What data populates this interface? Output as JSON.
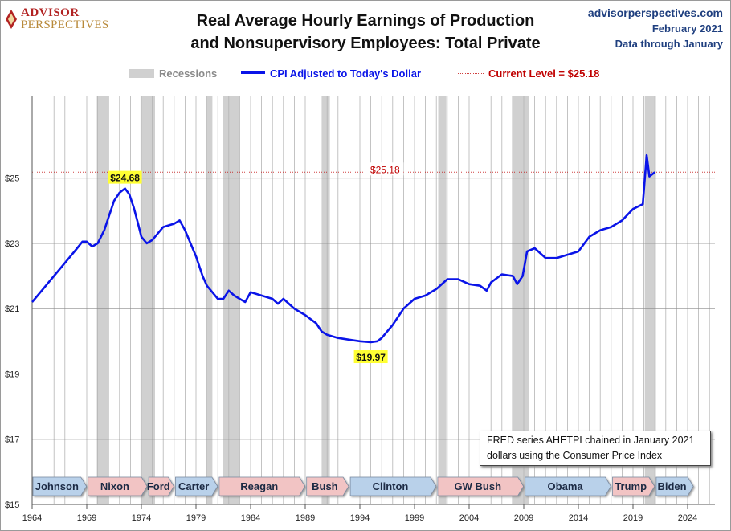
{
  "brand": {
    "line1": "ADVISOR",
    "line2": "PERSPECTIVES"
  },
  "title": "Real Average Hourly Earnings of Production\nand Nonsupervisory Employees: Total Private",
  "title_line1": "Real Average Hourly Earnings of Production",
  "title_line2": "and Nonsupervisory Employees: Total Private",
  "source": {
    "site": "advisorperspectives.com",
    "date": "February 2021",
    "through": "Data through January"
  },
  "legend": {
    "recessions": "Recessions",
    "series": "CPI Adjusted to Today's Dollar",
    "current": "Current Level = $25.18"
  },
  "note": {
    "line1": "FRED series AHETPI chained in January 2021",
    "line2": "dollars using the Consumer Price Index"
  },
  "colors": {
    "series": "#0a14e8",
    "recession": "#d0d0d0",
    "current": "#c00000",
    "highlight": "#ffff33",
    "dem": "#b9d1ea",
    "rep": "#f2c4c4",
    "grid": "#a0a0a0"
  },
  "chart_data": {
    "type": "line",
    "title": "Real Average Hourly Earnings of Production and Nonsupervisory Employees: Total Private",
    "xlim": [
      1964,
      2026.5
    ],
    "ylim": [
      15,
      27.5
    ],
    "x_ticks": [
      "1964",
      "1969",
      "1974",
      "1979",
      "1984",
      "1989",
      "1994",
      "1999",
      "2004",
      "2009",
      "2014",
      "2019",
      "2024"
    ],
    "y_ticks": [
      "$15",
      "$17",
      "$19",
      "$21",
      "$23",
      "$25"
    ],
    "y_tick_values": [
      15,
      17,
      19,
      21,
      23,
      25
    ],
    "grid": true,
    "legend_position": "top",
    "series": [
      {
        "name": "CPI Adjusted to Today's Dollar",
        "x": [
          1964.0,
          1965.0,
          1966.0,
          1967.0,
          1968.0,
          1968.6,
          1969.0,
          1969.5,
          1970.0,
          1970.6,
          1971.0,
          1971.5,
          1972.0,
          1972.5,
          1972.9,
          1973.3,
          1973.7,
          1974.0,
          1974.5,
          1975.0,
          1975.5,
          1976.0,
          1976.5,
          1977.0,
          1977.5,
          1978.0,
          1978.5,
          1979.0,
          1979.6,
          1980.0,
          1980.5,
          1981.0,
          1981.5,
          1982.0,
          1982.5,
          1983.0,
          1983.5,
          1984.0,
          1985.0,
          1986.0,
          1986.5,
          1987.0,
          1988.0,
          1989.0,
          1990.0,
          1990.5,
          1991.0,
          1992.0,
          1993.0,
          1994.0,
          1995.0,
          1995.6,
          1996.0,
          1997.0,
          1998.0,
          1999.0,
          2000.0,
          2001.0,
          2002.0,
          2003.0,
          2004.0,
          2005.0,
          2005.6,
          2006.0,
          2007.0,
          2008.0,
          2008.4,
          2008.9,
          2009.3,
          2010.0,
          2011.0,
          2012.0,
          2013.0,
          2014.0,
          2015.0,
          2016.0,
          2017.0,
          2018.0,
          2019.0,
          2019.9,
          2020.25,
          2020.5,
          2021.0
        ],
        "values": [
          21.2,
          21.6,
          22.0,
          22.4,
          22.8,
          23.05,
          23.05,
          22.9,
          23.0,
          23.4,
          23.8,
          24.3,
          24.55,
          24.68,
          24.5,
          24.1,
          23.6,
          23.2,
          23.0,
          23.1,
          23.3,
          23.5,
          23.55,
          23.6,
          23.7,
          23.4,
          23.0,
          22.6,
          22.0,
          21.7,
          21.5,
          21.3,
          21.3,
          21.55,
          21.4,
          21.3,
          21.2,
          21.5,
          21.4,
          21.3,
          21.15,
          21.3,
          21.0,
          20.8,
          20.55,
          20.3,
          20.2,
          20.1,
          20.05,
          20.0,
          19.97,
          20.0,
          20.1,
          20.5,
          21.0,
          21.3,
          21.4,
          21.6,
          21.9,
          21.9,
          21.75,
          21.7,
          21.55,
          21.8,
          22.05,
          22.0,
          21.75,
          22.0,
          22.75,
          22.85,
          22.55,
          22.55,
          22.65,
          22.75,
          23.2,
          23.4,
          23.5,
          23.7,
          24.05,
          24.2,
          25.7,
          25.05,
          25.18
        ]
      }
    ],
    "annotations": [
      {
        "label": "$24.68",
        "x": 1972.5,
        "y": 24.68,
        "kind": "peak"
      },
      {
        "label": "$19.97",
        "x": 1995.0,
        "y": 19.97,
        "kind": "trough"
      },
      {
        "label": "$25.18",
        "x": 2020.2,
        "y": 25.18,
        "kind": "current"
      }
    ],
    "current_level": 25.18,
    "recessions": [
      [
        1969.92,
        1970.92
      ],
      [
        1973.92,
        1975.25
      ],
      [
        1980.0,
        1980.5
      ],
      [
        1981.5,
        1982.92
      ],
      [
        1990.5,
        1991.25
      ],
      [
        2001.17,
        2001.92
      ],
      [
        2007.92,
        2009.5
      ],
      [
        2020.08,
        2021.1
      ]
    ],
    "presidents": [
      {
        "name": "Johnson",
        "start": 1964.0,
        "end": 1969.05,
        "party": "dem"
      },
      {
        "name": "Nixon",
        "start": 1969.05,
        "end": 1974.6,
        "party": "rep"
      },
      {
        "name": "Ford",
        "start": 1974.6,
        "end": 1977.05,
        "party": "rep"
      },
      {
        "name": "Carter",
        "start": 1977.05,
        "end": 1981.05,
        "party": "dem"
      },
      {
        "name": "Reagan",
        "start": 1981.05,
        "end": 1989.05,
        "party": "rep"
      },
      {
        "name": "Bush",
        "start": 1989.05,
        "end": 1993.05,
        "party": "rep"
      },
      {
        "name": "Clinton",
        "start": 1993.05,
        "end": 2001.05,
        "party": "dem"
      },
      {
        "name": "GW Bush",
        "start": 2001.05,
        "end": 2009.05,
        "party": "rep"
      },
      {
        "name": "Obama",
        "start": 2009.05,
        "end": 2017.05,
        "party": "dem"
      },
      {
        "name": "Trump",
        "start": 2017.05,
        "end": 2021.05,
        "party": "rep"
      },
      {
        "name": "Biden",
        "start": 2021.05,
        "end": 2024.6,
        "party": "dem"
      }
    ]
  }
}
